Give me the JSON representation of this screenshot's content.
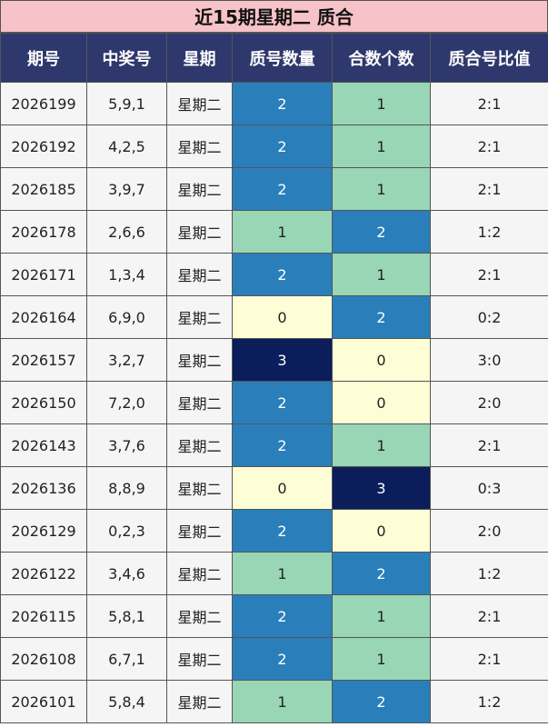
{
  "title": "近15期星期二 质合",
  "table": {
    "headers": [
      "期号",
      "中奖号",
      "星期",
      "质号数量",
      "合数个数",
      "质合号比值"
    ],
    "count_colors": [
      "#fdfdd6",
      "#98d6b5",
      "#2a7fba",
      "#0b1e5b"
    ],
    "count_text_colors": [
      "#222222",
      "#222222",
      "#ffffff",
      "#ffffff"
    ],
    "rows": [
      [
        "2026199",
        "5,9,1",
        "星期二",
        2,
        1,
        "2:1"
      ],
      [
        "2026192",
        "4,2,5",
        "星期二",
        2,
        1,
        "2:1"
      ],
      [
        "2026185",
        "3,9,7",
        "星期二",
        2,
        1,
        "2:1"
      ],
      [
        "2026178",
        "2,6,6",
        "星期二",
        1,
        2,
        "1:2"
      ],
      [
        "2026171",
        "1,3,4",
        "星期二",
        2,
        1,
        "2:1"
      ],
      [
        "2026164",
        "6,9,0",
        "星期二",
        0,
        2,
        "0:2"
      ],
      [
        "2026157",
        "3,2,7",
        "星期二",
        3,
        0,
        "3:0"
      ],
      [
        "2026150",
        "7,2,0",
        "星期二",
        2,
        0,
        "2:0"
      ],
      [
        "2026143",
        "3,7,6",
        "星期二",
        2,
        1,
        "2:1"
      ],
      [
        "2026136",
        "8,8,9",
        "星期二",
        0,
        3,
        "0:3"
      ],
      [
        "2026129",
        "0,2,3",
        "星期二",
        2,
        0,
        "2:0"
      ],
      [
        "2026122",
        "3,4,6",
        "星期二",
        1,
        2,
        "1:2"
      ],
      [
        "2026115",
        "5,8,1",
        "星期二",
        2,
        1,
        "2:1"
      ],
      [
        "2026108",
        "6,7,1",
        "星期二",
        2,
        1,
        "2:1"
      ],
      [
        "2026101",
        "5,8,4",
        "星期二",
        1,
        2,
        "1:2"
      ]
    ]
  }
}
